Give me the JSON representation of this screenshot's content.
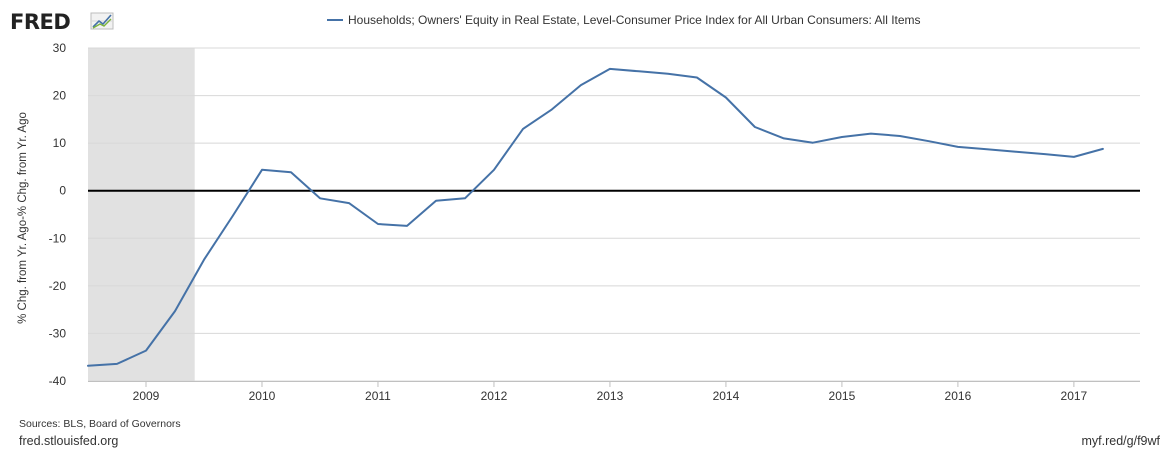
{
  "logo": {
    "text": "FRED"
  },
  "footer": {
    "sources": "Sources: BLS, Board of Governors",
    "site": "fred.stlouisfed.org",
    "short_url": "myf.red/g/f9wf"
  },
  "chart_data": {
    "type": "line",
    "title": "Households; Owners' Equity in Real Estate, Level-Consumer Price Index for All Urban Consumers: All Items",
    "ylabel": "% Chg. from Yr. Ago-% Chg. from Yr. Ago",
    "xlabel": "",
    "xlim": [
      2008.5,
      2017.57
    ],
    "ylim": [
      -40,
      30
    ],
    "yticks": [
      30,
      20,
      10,
      0,
      -10,
      -20,
      -30,
      -40
    ],
    "xticks": [
      {
        "label": "2009",
        "value": 2009
      },
      {
        "label": "2010",
        "value": 2010
      },
      {
        "label": "2011",
        "value": 2011
      },
      {
        "label": "2012",
        "value": 2012
      },
      {
        "label": "2013",
        "value": 2013
      },
      {
        "label": "2014",
        "value": 2014
      },
      {
        "label": "2015",
        "value": 2015
      },
      {
        "label": "2016",
        "value": 2016
      },
      {
        "label": "2017",
        "value": 2017
      }
    ],
    "recession": {
      "start": 2008.5,
      "end": 2009.42
    },
    "zero_line": 0,
    "grid": true,
    "line_color": "#4572a7",
    "recession_color": "#e1e1e1",
    "series": [
      {
        "name": "Households; Owners' Equity in Real Estate, Level-Consumer Price Index for All Urban Consumers: All Items",
        "points": [
          [
            2008.5,
            -36.8
          ],
          [
            2008.75,
            -36.4
          ],
          [
            2009.0,
            -33.6
          ],
          [
            2009.25,
            -25.3
          ],
          [
            2009.5,
            -14.5
          ],
          [
            2009.75,
            -5.2
          ],
          [
            2010.0,
            4.4
          ],
          [
            2010.25,
            3.9
          ],
          [
            2010.5,
            -1.6
          ],
          [
            2010.75,
            -2.6
          ],
          [
            2011.0,
            -7.0
          ],
          [
            2011.25,
            -7.4
          ],
          [
            2011.5,
            -2.1
          ],
          [
            2011.75,
            -1.6
          ],
          [
            2012.0,
            4.4
          ],
          [
            2012.25,
            13.0
          ],
          [
            2012.5,
            17.1
          ],
          [
            2012.75,
            22.2
          ],
          [
            2013.0,
            25.6
          ],
          [
            2013.25,
            25.1
          ],
          [
            2013.5,
            24.6
          ],
          [
            2013.75,
            23.8
          ],
          [
            2014.0,
            19.6
          ],
          [
            2014.25,
            13.4
          ],
          [
            2014.5,
            11.0
          ],
          [
            2014.75,
            10.1
          ],
          [
            2015.0,
            11.3
          ],
          [
            2015.25,
            12.0
          ],
          [
            2015.5,
            11.5
          ],
          [
            2015.75,
            10.4
          ],
          [
            2016.0,
            9.2
          ],
          [
            2016.25,
            8.7
          ],
          [
            2016.5,
            8.2
          ],
          [
            2016.75,
            7.7
          ],
          [
            2017.0,
            7.1
          ],
          [
            2017.25,
            8.8
          ]
        ]
      }
    ]
  }
}
